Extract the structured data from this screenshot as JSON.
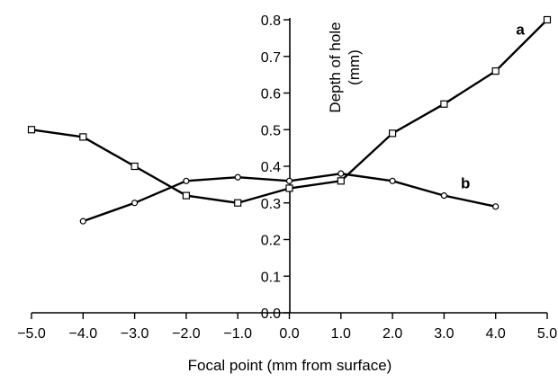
{
  "chart_data": {
    "type": "line",
    "xlabel": "Focal point (mm from surface)",
    "ylabel": "Depth of hole (mm)",
    "ylabel_lines": [
      "Depth of hole",
      "(mm)"
    ],
    "xlim": [
      -5,
      5
    ],
    "ylim": [
      0,
      0.8
    ],
    "x_ticks": [
      -5,
      -4,
      -3,
      -2,
      -1,
      0,
      1,
      2,
      3,
      4,
      5
    ],
    "x_tick_labels": [
      "−5.0",
      "−4.0",
      "−3.0",
      "−2.0",
      "−1.0",
      "0.0",
      "1.0",
      "2.0",
      "3.0",
      "4.0",
      "5.0"
    ],
    "y_ticks": [
      0,
      0.1,
      0.2,
      0.3,
      0.4,
      0.5,
      0.6,
      0.7,
      0.8
    ],
    "y_tick_labels": [
      "0.0",
      "0.1",
      "0.2",
      "0.3",
      "0.4",
      "0.5",
      "0.6",
      "0.7",
      "0.8"
    ],
    "grid": false,
    "series": [
      {
        "name": "a",
        "marker": "square",
        "x": [
          -5,
          -4,
          -3,
          -2,
          -1,
          0,
          1,
          2,
          3,
          4,
          5
        ],
        "y": [
          0.5,
          0.48,
          0.4,
          0.32,
          0.3,
          0.34,
          0.36,
          0.49,
          0.57,
          0.66,
          0.8
        ]
      },
      {
        "name": "b",
        "marker": "circle",
        "x": [
          -4,
          -3,
          -2,
          -1,
          0,
          1,
          2,
          3,
          4
        ],
        "y": [
          0.25,
          0.3,
          0.36,
          0.37,
          0.36,
          0.38,
          0.36,
          0.32,
          0.29
        ]
      }
    ]
  }
}
